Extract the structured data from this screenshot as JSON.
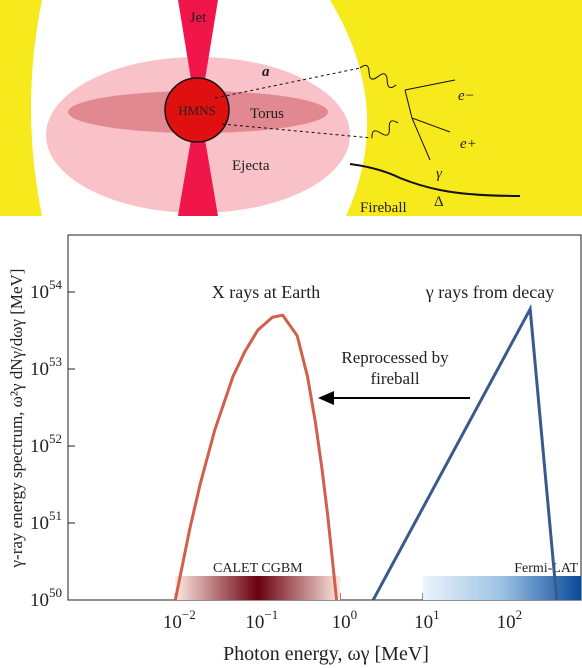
{
  "diagram": {
    "labels": {
      "jet": "Jet",
      "a": "a",
      "hmns": "HMNS",
      "torus": "Torus",
      "ejecta": "Ejecta",
      "electron": "e−",
      "positron": "e+",
      "gamma": "γ",
      "delta": "Δ",
      "fireball": "Fireball"
    }
  },
  "chart_data": {
    "type": "line",
    "log_x": true,
    "log_y": true,
    "xlabel": "Photon energy, ωγ [MeV]",
    "ylabel": "γ-ray energy spectrum, ω²γ dNγ/dωγ [MeV]",
    "xlim": [
      0.0005,
      850
    ],
    "ylim": [
      1e+50,
      5.5e+54
    ],
    "xticks": [
      {
        "value": 0.01,
        "label": "10",
        "power": "−2"
      },
      {
        "value": 0.1,
        "label": "10",
        "power": "−1"
      },
      {
        "value": 1,
        "label": "10",
        "power": "0"
      },
      {
        "value": 10,
        "label": "10",
        "power": "1"
      },
      {
        "value": 100,
        "label": "10",
        "power": "2"
      }
    ],
    "yticks": [
      {
        "value": 1e+50,
        "label": "10",
        "power": "50"
      },
      {
        "value": 1e+51,
        "label": "10",
        "power": "51"
      },
      {
        "value": 1e+52,
        "label": "10",
        "power": "52"
      },
      {
        "value": 1e+53,
        "label": "10",
        "power": "53"
      },
      {
        "value": 1e+54,
        "label": "10",
        "power": "54"
      }
    ],
    "series": [
      {
        "name": "X rays at Earth",
        "color": "#d0604c",
        "x": [
          0.01,
          0.015,
          0.02,
          0.03,
          0.05,
          0.07,
          0.1,
          0.15,
          0.2,
          0.3,
          0.4,
          0.5,
          0.6,
          0.7,
          0.8,
          0.9
        ],
        "y": [
          1e+50,
          8.5e+50,
          3.2e+51,
          1.6e+52,
          8e+52,
          1.7e+53,
          3.2e+53,
          4.7e+53,
          5e+53,
          2.7e+53,
          8e+52,
          2e+52,
          5e+51,
          1.3e+51,
          3.4e+50,
          1e+50
        ]
      },
      {
        "name": "γ rays from decay",
        "color": "#3b5a8c",
        "x": [
          2.5,
          200,
          420
        ],
        "y": [
          1e+50,
          6e+53,
          1e+50
        ]
      }
    ],
    "bands": [
      {
        "name": "CALET CGBM",
        "range": [
          0.01,
          1
        ],
        "colors": [
          "#fde8e0",
          "#6b0010",
          "#fde8e0"
        ]
      },
      {
        "name": "Fermi-LAT",
        "range": [
          10,
          850
        ],
        "colors": [
          "#eef4fb",
          "#9cc2e4",
          "#0a4a9a"
        ]
      }
    ],
    "annotation": {
      "line1": "Reprocessed by",
      "line2": "fireball"
    }
  }
}
